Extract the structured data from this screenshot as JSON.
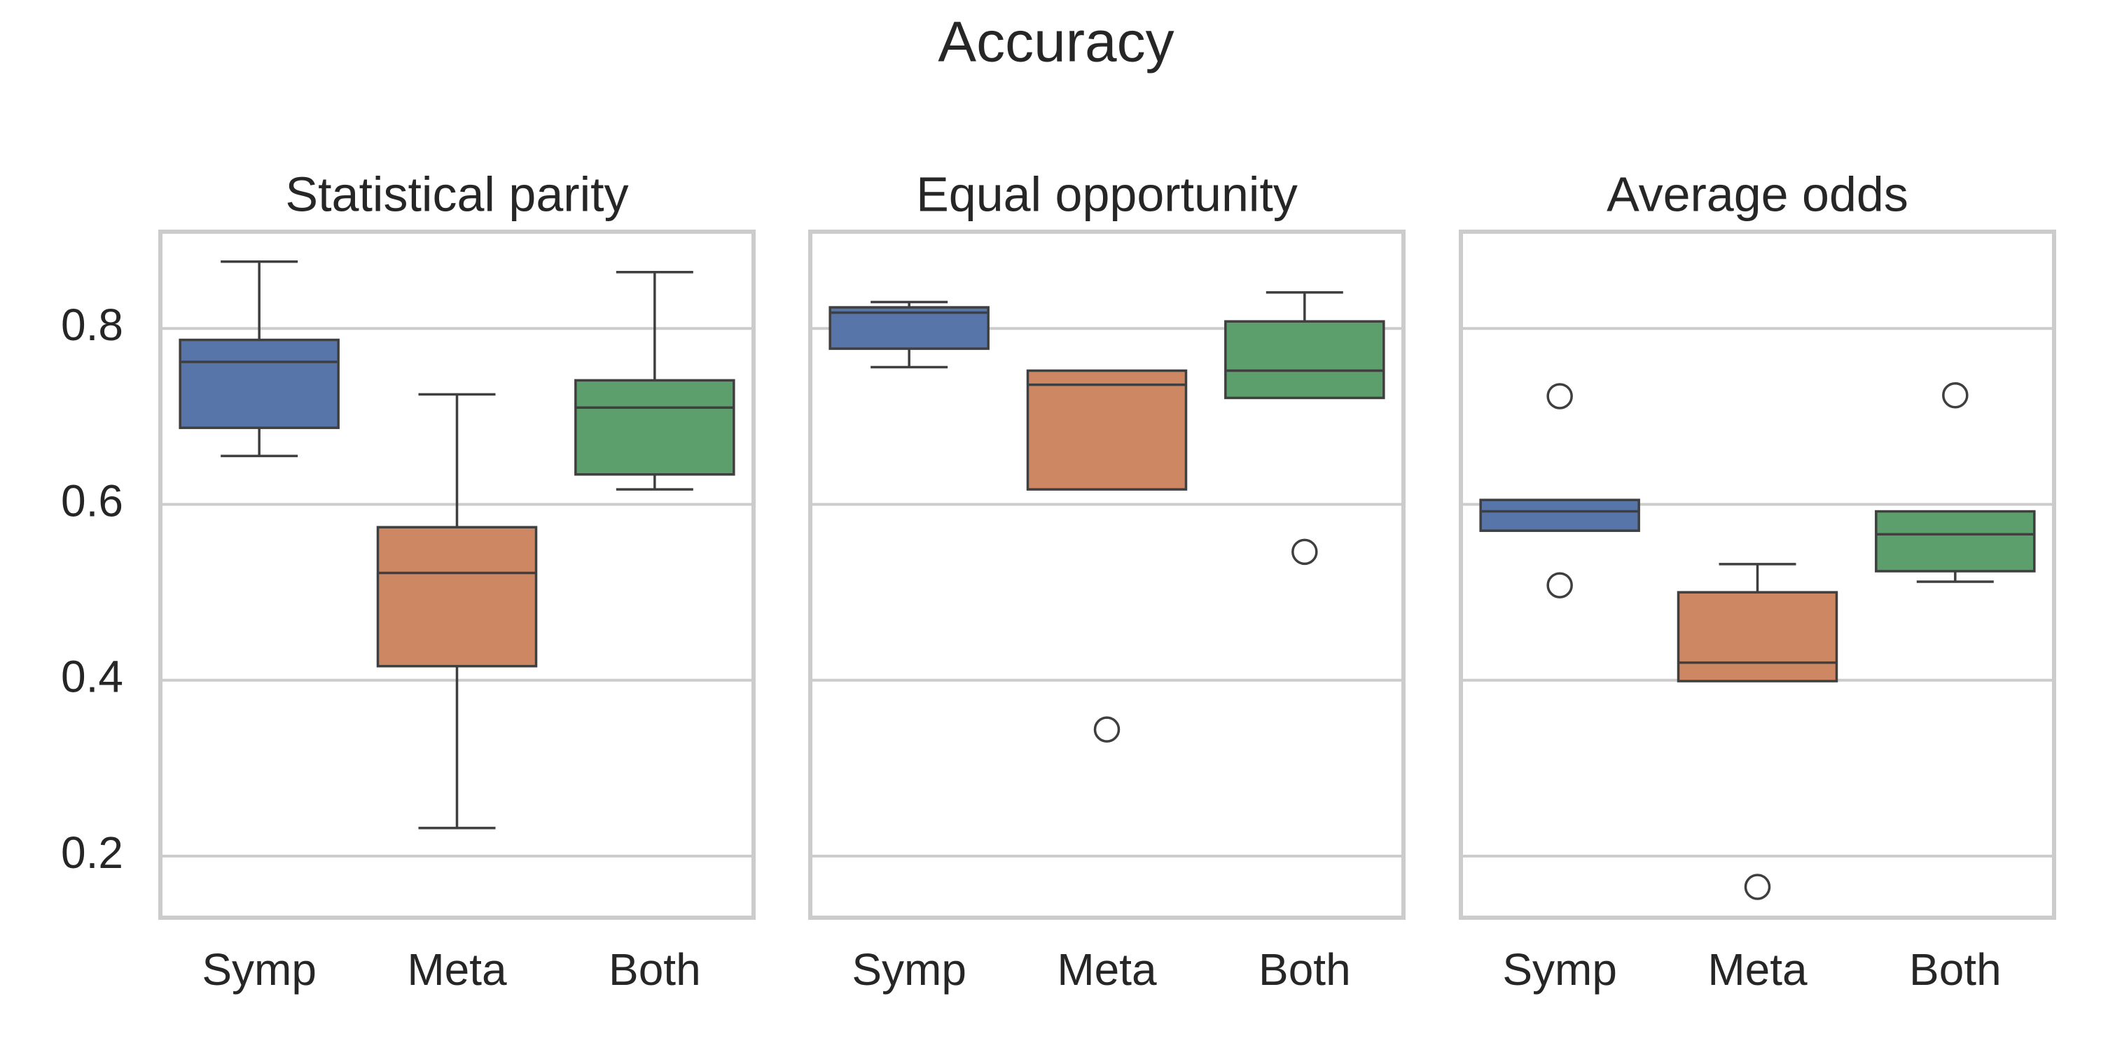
{
  "chart_data": {
    "type": "box",
    "title": "Accuracy",
    "categories": [
      "Symp",
      "Meta",
      "Both"
    ],
    "colors": {
      "Symp": "#5875a9",
      "Meta": "#cd8762",
      "Both": "#5c9f6c"
    },
    "y_ticks": [
      "0.2",
      "0.4",
      "0.6",
      "0.8"
    ],
    "ylim": [
      0.13,
      0.91
    ],
    "grid": true,
    "panels": [
      {
        "title": "Statistical parity",
        "boxes": [
          {
            "category": "Symp",
            "whislo": 0.655,
            "q1": 0.687,
            "med": 0.762,
            "q3": 0.787,
            "whishi": 0.876,
            "fliers": []
          },
          {
            "category": "Meta",
            "whislo": 0.232,
            "q1": 0.416,
            "med": 0.522,
            "q3": 0.574,
            "whishi": 0.725,
            "fliers": []
          },
          {
            "category": "Both",
            "whislo": 0.617,
            "q1": 0.634,
            "med": 0.71,
            "q3": 0.741,
            "whishi": 0.864,
            "fliers": []
          }
        ]
      },
      {
        "title": "Equal opportunity",
        "boxes": [
          {
            "category": "Symp",
            "whislo": 0.756,
            "q1": 0.777,
            "med": 0.818,
            "q3": 0.824,
            "whishi": 0.83,
            "fliers": []
          },
          {
            "category": "Meta",
            "whislo": 0.617,
            "q1": 0.617,
            "med": 0.736,
            "q3": 0.752,
            "whishi": 0.752,
            "fliers": [
              0.344
            ]
          },
          {
            "category": "Both",
            "whislo": 0.721,
            "q1": 0.721,
            "med": 0.752,
            "q3": 0.808,
            "whishi": 0.841,
            "fliers": [
              0.546
            ]
          }
        ]
      },
      {
        "title": "Average odds",
        "boxes": [
          {
            "category": "Symp",
            "whislo": 0.57,
            "q1": 0.57,
            "med": 0.592,
            "q3": 0.605,
            "whishi": 0.605,
            "fliers": [
              0.723,
              0.508
            ]
          },
          {
            "category": "Meta",
            "whislo": 0.399,
            "q1": 0.399,
            "med": 0.42,
            "q3": 0.5,
            "whishi": 0.532,
            "fliers": [
              0.165
            ]
          },
          {
            "category": "Both",
            "whislo": 0.512,
            "q1": 0.524,
            "med": 0.566,
            "q3": 0.592,
            "whishi": 0.592,
            "fliers": [
              0.724
            ]
          }
        ]
      }
    ]
  }
}
